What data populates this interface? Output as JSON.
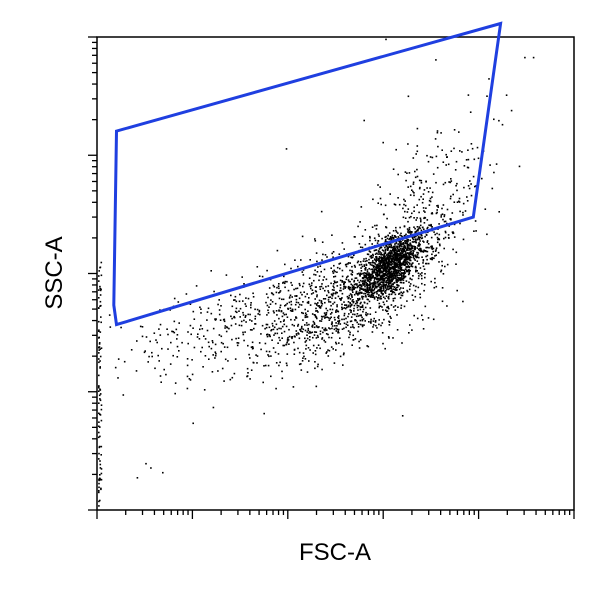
{
  "chart_data": {
    "type": "scatter",
    "title": "",
    "xlabel": "FSC-A",
    "ylabel": "SSC-A",
    "x_scale": "log",
    "y_scale": "log",
    "xlim": [
      1,
      100000
    ],
    "ylim": [
      1,
      10000
    ],
    "grid": false,
    "legend": "none",
    "gate_color": "#1f3fe0",
    "point_color": "#000000",
    "gate": {
      "shape": "polygon",
      "vertices": [
        [
          1.6,
          37
        ],
        [
          8800,
          300
        ],
        [
          17000,
          13000
        ],
        [
          1.6,
          1600
        ],
        [
          1.5,
          54
        ]
      ]
    },
    "populations": [
      {
        "center": [
          1200,
          120
        ],
        "spread_log": [
          0.17,
          0.14
        ],
        "count": 1400
      },
      {
        "center": [
          400,
          60
        ],
        "spread_log": [
          0.45,
          0.28
        ],
        "count": 900
      },
      {
        "center": [
          40,
          40
        ],
        "spread_log": [
          0.65,
          0.25
        ],
        "count": 400
      },
      {
        "center": [
          2500,
          300
        ],
        "spread_log": [
          0.35,
          0.4
        ],
        "count": 350
      }
    ],
    "isolated_points": [
      [
        1050,
        9700
      ],
      [
        3500,
        6500
      ],
      [
        30000,
        6800
      ],
      [
        37000,
        6800
      ],
      [
        1800,
        3200
      ],
      [
        620,
        2000
      ],
      [
        95,
        1150
      ],
      [
        980,
        1300
      ],
      [
        10,
        5.5
      ],
      [
        3.2,
        2.5
      ],
      [
        3.6,
        2.3
      ],
      [
        4.8,
        2.1
      ],
      [
        2.6,
        1.9
      ]
    ],
    "axis_points": {
      "x_near_min": 1.0,
      "y_range": [
        1,
        150
      ],
      "count": 90
    }
  }
}
